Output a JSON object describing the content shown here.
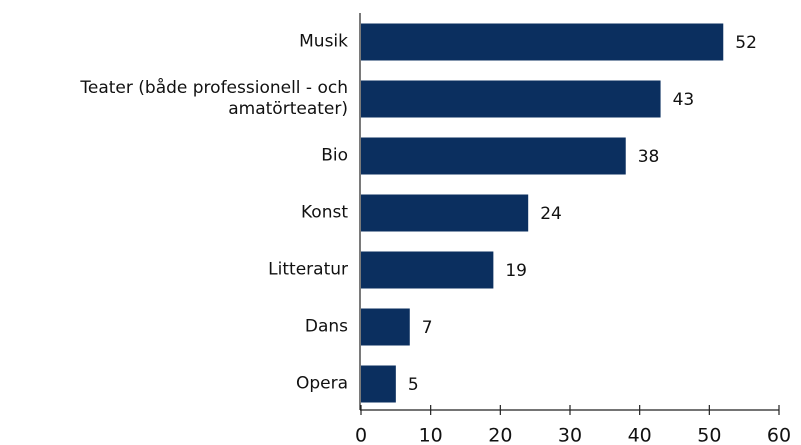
{
  "chart_data": {
    "type": "bar",
    "orientation": "horizontal",
    "categories": [
      "Musik",
      "Teater (både professionell - och amatörteater)",
      "Bio",
      "Konst ",
      "Litteratur",
      "Dans",
      "Opera"
    ],
    "values": [
      52,
      43,
      38,
      24,
      19,
      7,
      5
    ],
    "color": "#0b2f5f",
    "xlim": [
      0,
      60
    ],
    "xticks": [
      0,
      10,
      20,
      30,
      40,
      50,
      60
    ],
    "grid": false,
    "data_labels": true
  }
}
